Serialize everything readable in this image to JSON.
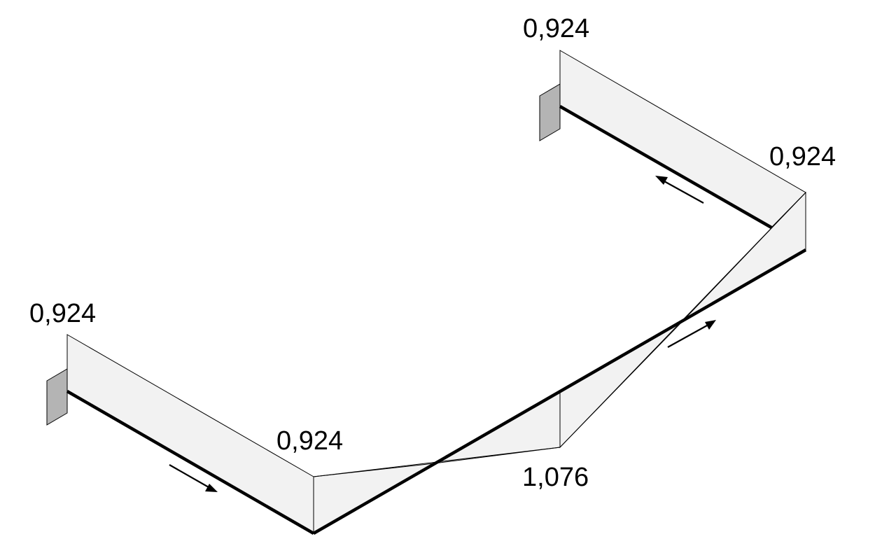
{
  "diagram": {
    "labels": {
      "top_left": "0,924",
      "top_right": "0,924",
      "left_start": "0,924",
      "left_corner": "0,924",
      "bottom_mid": "1,076"
    },
    "colors": {
      "diagram_fill": "#f2f2f2",
      "support_fill": "#b4b4b4",
      "line": "#000000",
      "background": "#ffffff"
    },
    "elements": {
      "supports": 2,
      "direction_arrows": 3
    }
  }
}
